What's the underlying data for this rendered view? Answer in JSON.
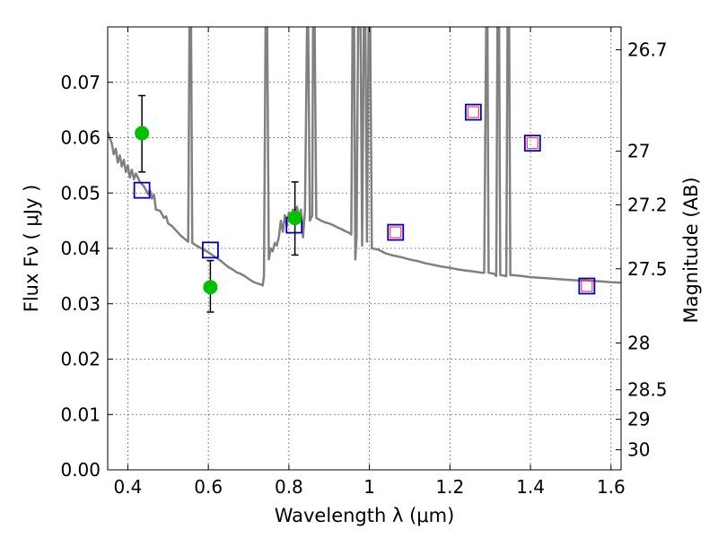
{
  "chart_data": {
    "type": "scatter",
    "xlabel": "Wavelength  λ (μm)",
    "ylabel": "Flux  Fν  ( μJy )",
    "ylabel_right": "Magnitude (AB)",
    "xlim": [
      0.35,
      1.625
    ],
    "ylim": [
      0.0,
      0.08
    ],
    "grid": true,
    "x_ticks": [
      0.4,
      0.6,
      0.8,
      1.0,
      1.2,
      1.4,
      1.6
    ],
    "x_tick_labels": [
      "0.4",
      "0.6",
      "0.8",
      "1",
      "1.2",
      "1.4",
      "1.6"
    ],
    "y_ticks": [
      0.0,
      0.01,
      0.02,
      0.03,
      0.04,
      0.05,
      0.06,
      0.07
    ],
    "y_tick_labels": [
      "0.00",
      "0.01",
      "0.02",
      "0.03",
      "0.04",
      "0.05",
      "0.06",
      "0.07"
    ],
    "right_ticks": [
      {
        "label": "26.7",
        "mag": 26.7
      },
      {
        "label": "27",
        "mag": 27.0
      },
      {
        "label": "27.2",
        "mag": 27.2
      },
      {
        "label": "27.5",
        "mag": 27.5
      },
      {
        "label": "28",
        "mag": 28.0
      },
      {
        "label": "28.5",
        "mag": 28.5
      },
      {
        "label": "29",
        "mag": 29.0
      },
      {
        "label": "30",
        "mag": 30.0
      }
    ],
    "colors": {
      "model_line": "#808080",
      "observed_points": "#00c000",
      "model_flux_boxes": "#0000c8",
      "upper_limit_boxes": "#ff4040",
      "error_bars": "#000000"
    },
    "series": [
      {
        "name": "model_spectrum",
        "type": "line",
        "points": [
          [
            0.35,
            0.061
          ],
          [
            0.355,
            0.06
          ],
          [
            0.36,
            0.059
          ],
          [
            0.365,
            0.057
          ],
          [
            0.37,
            0.058
          ],
          [
            0.375,
            0.0555
          ],
          [
            0.38,
            0.0568
          ],
          [
            0.385,
            0.0548
          ],
          [
            0.39,
            0.056
          ],
          [
            0.395,
            0.0538
          ],
          [
            0.4,
            0.055
          ],
          [
            0.405,
            0.0528
          ],
          [
            0.41,
            0.0542
          ],
          [
            0.415,
            0.0525
          ],
          [
            0.42,
            0.0535
          ],
          [
            0.43,
            0.052
          ],
          [
            0.44,
            0.0512
          ],
          [
            0.45,
            0.0498
          ],
          [
            0.455,
            0.0505
          ],
          [
            0.46,
            0.049
          ],
          [
            0.465,
            0.0497
          ],
          [
            0.47,
            0.047
          ],
          [
            0.48,
            0.0468
          ],
          [
            0.49,
            0.0455
          ],
          [
            0.495,
            0.0458
          ],
          [
            0.5,
            0.0445
          ],
          [
            0.51,
            0.044
          ],
          [
            0.52,
            0.0432
          ],
          [
            0.53,
            0.0424
          ],
          [
            0.54,
            0.0418
          ],
          [
            0.55,
            0.0412
          ],
          [
            0.553,
            0.08
          ],
          [
            0.557,
            0.08
          ],
          [
            0.56,
            0.041
          ],
          [
            0.57,
            0.0405
          ],
          [
            0.58,
            0.0401
          ],
          [
            0.59,
            0.0397
          ],
          [
            0.6,
            0.0393
          ],
          [
            0.61,
            0.0388
          ],
          [
            0.62,
            0.0383
          ],
          [
            0.63,
            0.0378
          ],
          [
            0.64,
            0.0372
          ],
          [
            0.65,
            0.0366
          ],
          [
            0.66,
            0.0362
          ],
          [
            0.67,
            0.0357
          ],
          [
            0.68,
            0.0354
          ],
          [
            0.69,
            0.035
          ],
          [
            0.7,
            0.0345
          ],
          [
            0.71,
            0.034
          ],
          [
            0.72,
            0.0337
          ],
          [
            0.73,
            0.0335
          ],
          [
            0.735,
            0.0333
          ],
          [
            0.738,
            0.035
          ],
          [
            0.742,
            0.08
          ],
          [
            0.746,
            0.08
          ],
          [
            0.75,
            0.038
          ],
          [
            0.755,
            0.04
          ],
          [
            0.76,
            0.0395
          ],
          [
            0.765,
            0.041
          ],
          [
            0.77,
            0.0405
          ],
          [
            0.775,
            0.042
          ],
          [
            0.78,
            0.045
          ],
          [
            0.785,
            0.043
          ],
          [
            0.79,
            0.046
          ],
          [
            0.795,
            0.044
          ],
          [
            0.8,
            0.0465
          ],
          [
            0.805,
            0.045
          ],
          [
            0.81,
            0.047
          ],
          [
            0.815,
            0.0463
          ],
          [
            0.82,
            0.0475
          ],
          [
            0.825,
            0.0455
          ],
          [
            0.83,
            0.047
          ],
          [
            0.835,
            0.042
          ],
          [
            0.84,
            0.0468
          ],
          [
            0.845,
            0.08
          ],
          [
            0.848,
            0.08
          ],
          [
            0.852,
            0.045
          ],
          [
            0.858,
            0.0459
          ],
          [
            0.86,
            0.08
          ],
          [
            0.864,
            0.08
          ],
          [
            0.868,
            0.0455
          ],
          [
            0.88,
            0.045
          ],
          [
            0.89,
            0.0447
          ],
          [
            0.9,
            0.0445
          ],
          [
            0.91,
            0.0442
          ],
          [
            0.92,
            0.0438
          ],
          [
            0.93,
            0.0435
          ],
          [
            0.94,
            0.0431
          ],
          [
            0.95,
            0.0428
          ],
          [
            0.955,
            0.0425
          ],
          [
            0.958,
            0.08
          ],
          [
            0.962,
            0.08
          ],
          [
            0.965,
            0.038
          ],
          [
            0.968,
            0.042
          ],
          [
            0.972,
            0.08
          ],
          [
            0.978,
            0.08
          ],
          [
            0.982,
            0.0405
          ],
          [
            0.986,
            0.08
          ],
          [
            0.99,
            0.08
          ],
          [
            0.994,
            0.0412
          ],
          [
            0.998,
            0.08
          ],
          [
            1.002,
            0.08
          ],
          [
            1.006,
            0.04
          ],
          [
            1.02,
            0.0398
          ],
          [
            1.03,
            0.0395
          ],
          [
            1.04,
            0.0391
          ],
          [
            1.05,
            0.0389
          ],
          [
            1.06,
            0.0387
          ],
          [
            1.08,
            0.0384
          ],
          [
            1.1,
            0.038
          ],
          [
            1.12,
            0.0377
          ],
          [
            1.14,
            0.0373
          ],
          [
            1.16,
            0.037
          ],
          [
            1.18,
            0.0367
          ],
          [
            1.2,
            0.0365
          ],
          [
            1.22,
            0.0362
          ],
          [
            1.24,
            0.036
          ],
          [
            1.26,
            0.0358
          ],
          [
            1.28,
            0.0356
          ],
          [
            1.285,
            0.0356
          ],
          [
            1.29,
            0.08
          ],
          [
            1.293,
            0.08
          ],
          [
            1.296,
            0.0356
          ],
          [
            1.31,
            0.0354
          ],
          [
            1.315,
            0.035
          ],
          [
            1.318,
            0.08
          ],
          [
            1.322,
            0.08
          ],
          [
            1.325,
            0.0352
          ],
          [
            1.34,
            0.035
          ],
          [
            1.343,
            0.08
          ],
          [
            1.347,
            0.08
          ],
          [
            1.35,
            0.0352
          ],
          [
            1.38,
            0.035
          ],
          [
            1.4,
            0.0348
          ],
          [
            1.42,
            0.0347
          ],
          [
            1.44,
            0.0346
          ],
          [
            1.46,
            0.0345
          ],
          [
            1.48,
            0.0344
          ],
          [
            1.5,
            0.0343
          ],
          [
            1.52,
            0.0342
          ],
          [
            1.54,
            0.0342
          ],
          [
            1.56,
            0.0341
          ],
          [
            1.58,
            0.034
          ],
          [
            1.6,
            0.0339
          ],
          [
            1.625,
            0.0338
          ]
        ]
      },
      {
        "name": "observed_flux",
        "type": "points_with_errors",
        "points": [
          {
            "x": 0.435,
            "y": 0.0608,
            "err_low": 0.0538,
            "err_high": 0.0676
          },
          {
            "x": 0.605,
            "y": 0.033,
            "err_low": 0.0285,
            "err_high": 0.0378
          },
          {
            "x": 0.815,
            "y": 0.0455,
            "err_low": 0.0388,
            "err_high": 0.052
          }
        ]
      },
      {
        "name": "model_band_flux",
        "type": "open_squares",
        "points": [
          {
            "x": 0.435,
            "y": 0.0505
          },
          {
            "x": 0.605,
            "y": 0.0397
          },
          {
            "x": 0.813,
            "y": 0.0442
          },
          {
            "x": 1.065,
            "y": 0.0429
          },
          {
            "x": 1.258,
            "y": 0.0646
          },
          {
            "x": 1.405,
            "y": 0.059
          },
          {
            "x": 1.54,
            "y": 0.0332
          }
        ]
      },
      {
        "name": "upper_limits",
        "type": "open_squares",
        "points": [
          {
            "x": 1.065,
            "y": 0.0429
          },
          {
            "x": 1.258,
            "y": 0.0646
          },
          {
            "x": 1.405,
            "y": 0.059
          },
          {
            "x": 1.54,
            "y": 0.0332
          }
        ]
      }
    ]
  }
}
